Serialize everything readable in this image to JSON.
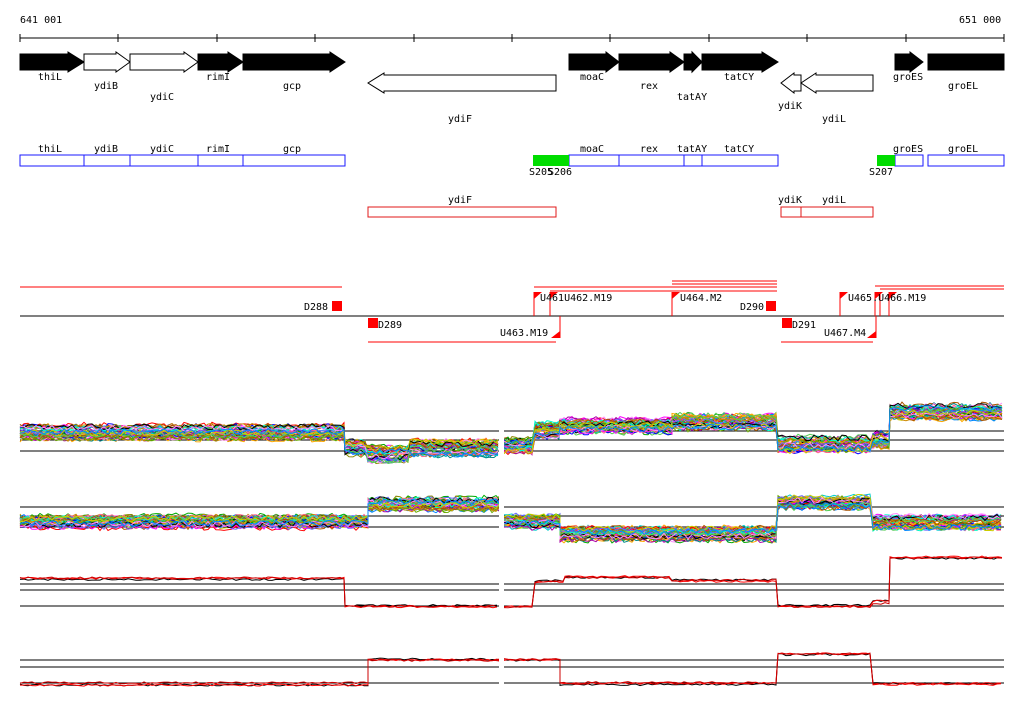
{
  "ruler": {
    "start_label": "641 001",
    "end_label": "651 000"
  },
  "genes": {
    "thiL": "thiL",
    "ydiB": "ydiB",
    "ydiC": "ydiC",
    "rimI": "rimI",
    "gcp": "gcp",
    "ydiF": "ydiF",
    "moaC": "moaC",
    "rex": "rex",
    "tatAY": "tatAY",
    "tatCY": "tatCY",
    "ydiK": "ydiK",
    "ydiL": "ydiL",
    "groES": "groES",
    "groEL": "groEL"
  },
  "markers": {
    "S205": "S205",
    "S206": "S206",
    "S207": "S207",
    "D288": "D288",
    "D289": "D289",
    "D290": "D290",
    "D291": "D291",
    "U461_U462_M19": "U461U462.M19",
    "U463_M19": "U463.M19",
    "U464_M2": "U464.M2",
    "U465_U466_M19": "U465.U466.M19",
    "U467_M4": "U467.M4"
  },
  "colors": {
    "forward_gene": "#000000",
    "reverse_gene": "#ffffff",
    "transcript_box": "#1a1aff",
    "antisense_box": "#e01818",
    "promoter": "#00dd00",
    "signal": "#ff0000"
  }
}
